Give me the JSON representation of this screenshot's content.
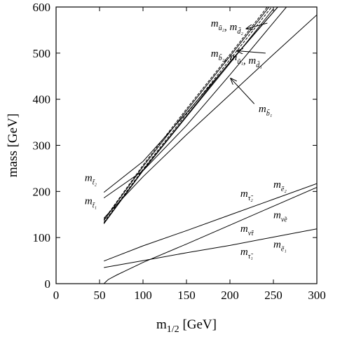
{
  "chart_data": {
    "type": "line",
    "xlabel": "m_{1/2} [GeV]",
    "ylabel": "mass [GeV]",
    "xlim": [
      0,
      300
    ],
    "ylim": [
      0,
      600
    ],
    "x_ticks": [
      0,
      50,
      100,
      150,
      200,
      250,
      300
    ],
    "y_ticks": [
      0,
      100,
      200,
      300,
      400,
      500,
      600
    ],
    "grid": false,
    "series": [
      {
        "id": "u2",
        "style": "solid",
        "x": [
          55,
          100,
          150,
          200,
          245
        ],
        "y": [
          137,
          254,
          375,
          493,
          600
        ]
      },
      {
        "id": "d2",
        "style": "dashed",
        "x": [
          55,
          100,
          150,
          200,
          243
        ],
        "y": [
          139,
          257,
          379,
          497,
          600
        ]
      },
      {
        "id": "b2",
        "style": "dashed",
        "x": [
          55,
          100,
          150,
          200,
          248
        ],
        "y": [
          133,
          248,
          368,
          486,
          600
        ]
      },
      {
        "id": "u1",
        "style": "solid",
        "x": [
          55,
          100,
          150,
          200,
          250
        ],
        "y": [
          130,
          245,
          362,
          478,
          596
        ]
      },
      {
        "id": "d1",
        "style": "solid",
        "x": [
          55,
          100,
          150,
          200,
          255
        ],
        "y": [
          131,
          246,
          364,
          481,
          600
        ]
      },
      {
        "id": "b1",
        "style": "solid",
        "x": [
          55,
          100,
          150,
          200,
          250,
          300
        ],
        "y": [
          142,
          232,
          323,
          410,
          497,
          583
        ]
      },
      {
        "id": "t2",
        "style": "solid",
        "x": [
          55,
          100,
          150,
          200,
          255
        ],
        "y": [
          198,
          265,
          370,
          480,
          600
        ]
      },
      {
        "id": "t1",
        "style": "solid",
        "x": [
          55,
          100,
          150,
          200,
          265
        ],
        "y": [
          186,
          245,
          343,
          453,
          600
        ]
      },
      {
        "id": "tau2_e2",
        "style": "solid",
        "x": [
          55,
          100,
          150,
          200,
          250,
          300
        ],
        "y": [
          49,
          82,
          115,
          149,
          183,
          217
        ]
      },
      {
        "id": "nutau_nue",
        "style": "solid",
        "x": [
          55,
          60,
          70,
          80,
          100,
          150,
          200,
          250,
          300
        ],
        "y": [
          0,
          9,
          19,
          28,
          46,
          86,
          127,
          168,
          209
        ]
      },
      {
        "id": "tau1_e1",
        "style": "solid",
        "x": [
          55,
          100,
          150,
          200,
          250,
          300
        ],
        "y": [
          35,
          50,
          67,
          83,
          101,
          119
        ]
      }
    ],
    "curve_labels": [
      {
        "id": "lbl-u2-d2",
        "parts": [
          [
            "m",
            "ũ₂"
          ],
          [
            ", ",
            ""
          ],
          [
            "m",
            "d̃₂"
          ]
        ],
        "anchor": [
          178,
          565
        ]
      },
      {
        "id": "lbl-b2-u1-d1",
        "parts": [
          [
            "m",
            "b̃₂"
          ],
          [
            ", ",
            ""
          ],
          [
            "m",
            "ũ₁"
          ],
          [
            ", ",
            ""
          ],
          [
            "m",
            "d̃₁"
          ]
        ],
        "anchor": [
          178,
          500
        ]
      },
      {
        "id": "lbl-b1",
        "parts": [
          [
            "m",
            "b̃₁"
          ]
        ],
        "anchor": [
          233,
          380
        ]
      },
      {
        "id": "lbl-t2",
        "parts": [
          [
            "m",
            "t̃₂"
          ]
        ],
        "anchor": [
          33,
          230
        ]
      },
      {
        "id": "lbl-t1",
        "parts": [
          [
            "m",
            "t̃₁"
          ]
        ],
        "anchor": [
          33,
          180
        ]
      },
      {
        "id": "lbl-tau2",
        "parts": [
          [
            "m",
            "τ̃₂"
          ]
        ],
        "anchor": [
          212,
          196
        ]
      },
      {
        "id": "lbl-e2",
        "parts": [
          [
            "m",
            "ẽ₂"
          ]
        ],
        "anchor": [
          250,
          216
        ]
      },
      {
        "id": "lbl-nutau",
        "parts": [
          [
            "m",
            "ν̃τ"
          ]
        ],
        "anchor": [
          212,
          120
        ]
      },
      {
        "id": "lbl-nue",
        "parts": [
          [
            "m",
            "ν̃e"
          ]
        ],
        "anchor": [
          250,
          150
        ]
      },
      {
        "id": "lbl-tau1",
        "parts": [
          [
            "m",
            "τ̃₁"
          ]
        ],
        "anchor": [
          212,
          70
        ]
      },
      {
        "id": "lbl-e1",
        "parts": [
          [
            "m",
            "ẽ₁"
          ]
        ],
        "anchor": [
          250,
          86
        ]
      }
    ],
    "arrows": [
      {
        "id": "arrow-u2-d2",
        "from": [
          243,
          565
        ],
        "to": [
          219,
          553
        ]
      },
      {
        "id": "arrow-b2-u1-d1",
        "from": [
          241,
          500
        ],
        "to": [
          208,
          505
        ]
      },
      {
        "id": "arrow-b1",
        "from": [
          228,
          390
        ],
        "to": [
          201,
          445
        ]
      }
    ]
  }
}
